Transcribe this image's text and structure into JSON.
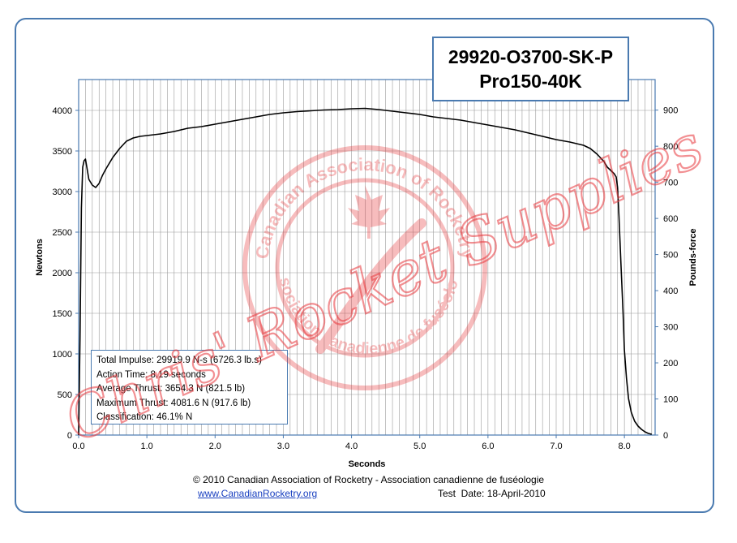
{
  "chart_data": {
    "type": "line",
    "title": "",
    "xlabel": "Seconds",
    "ylabel": "Newtons",
    "ylabel_right": "Pounds-force",
    "xlim": [
      0,
      8.45
    ],
    "ylim": [
      0,
      4380
    ],
    "ylim_right": [
      0,
      984.7
    ],
    "grid": true,
    "x_ticks": [
      "0.0",
      "1.0",
      "2.0",
      "3.0",
      "4.0",
      "5.0",
      "6.0",
      "7.0",
      "8.0"
    ],
    "y_ticks": [
      "0",
      "500",
      "1000",
      "1500",
      "2000",
      "2500",
      "3000",
      "3500",
      "4000"
    ],
    "y_right_ticks": [
      "0",
      "100",
      "200",
      "300",
      "400",
      "500",
      "600",
      "700",
      "800",
      "900"
    ],
    "series": [
      {
        "color": "#000000",
        "x": [
          0.0,
          0.02,
          0.04,
          0.06,
          0.08,
          0.1,
          0.12,
          0.15,
          0.2,
          0.25,
          0.3,
          0.35,
          0.4,
          0.45,
          0.5,
          0.6,
          0.7,
          0.8,
          0.9,
          1.0,
          1.2,
          1.4,
          1.6,
          1.8,
          2.0,
          2.2,
          2.4,
          2.6,
          2.8,
          3.0,
          3.2,
          3.4,
          3.6,
          3.8,
          4.0,
          4.2,
          4.4,
          4.6,
          4.8,
          5.0,
          5.2,
          5.4,
          5.6,
          5.8,
          6.0,
          6.2,
          6.4,
          6.6,
          6.8,
          7.0,
          7.2,
          7.4,
          7.5,
          7.6,
          7.7,
          7.75,
          7.8,
          7.85,
          7.88,
          7.9,
          7.92,
          7.95,
          7.98,
          8.0,
          8.03,
          8.06,
          8.1,
          8.15,
          8.2,
          8.25,
          8.3,
          8.35,
          8.4
        ],
        "y": [
          0,
          1200,
          2800,
          3300,
          3380,
          3400,
          3300,
          3150,
          3080,
          3050,
          3100,
          3200,
          3280,
          3350,
          3420,
          3530,
          3620,
          3660,
          3680,
          3690,
          3710,
          3740,
          3780,
          3800,
          3830,
          3860,
          3890,
          3920,
          3950,
          3970,
          3985,
          3995,
          4005,
          4010,
          4020,
          4025,
          4010,
          3990,
          3970,
          3950,
          3920,
          3900,
          3880,
          3850,
          3820,
          3790,
          3760,
          3720,
          3680,
          3640,
          3610,
          3570,
          3530,
          3460,
          3370,
          3300,
          3260,
          3220,
          3180,
          3050,
          2700,
          2100,
          1500,
          1050,
          700,
          450,
          280,
          170,
          110,
          70,
          40,
          20,
          10
        ]
      }
    ]
  },
  "motor": {
    "designation": "29920-O3700-SK-P",
    "name": "Pro150-40K"
  },
  "stats": {
    "total_impulse": "Total Impulse: 29919.9 N-s (6726.3 lb.s)",
    "action_time": "Action Time: 8.19 seconds",
    "average_thrust": "Average Thrust: 3654.3 N (821.5 lb)",
    "maximum_thrust": "Maximum Thrust: 4081.6 N (917.6 lb)",
    "classification": "Classification: 46.1% N"
  },
  "footer": {
    "copyright": "© 2010 Canadian Association of Rocketry - Association canadienne de fuséologie",
    "link": "www.CanadianRocketry.org",
    "test_date": "Test  Date: 18-April-2010"
  },
  "watermark": {
    "script_text": "Chris' Rocket Supplies",
    "seal_text_top": "Canadian Association of Rocketry",
    "seal_text_bottom": "Association canadienne de fuséologie"
  },
  "colors": {
    "frame": "#4a7ab0",
    "grid": "#9a9a9a",
    "watermark": "#e8373b",
    "link": "#1a40c0"
  }
}
